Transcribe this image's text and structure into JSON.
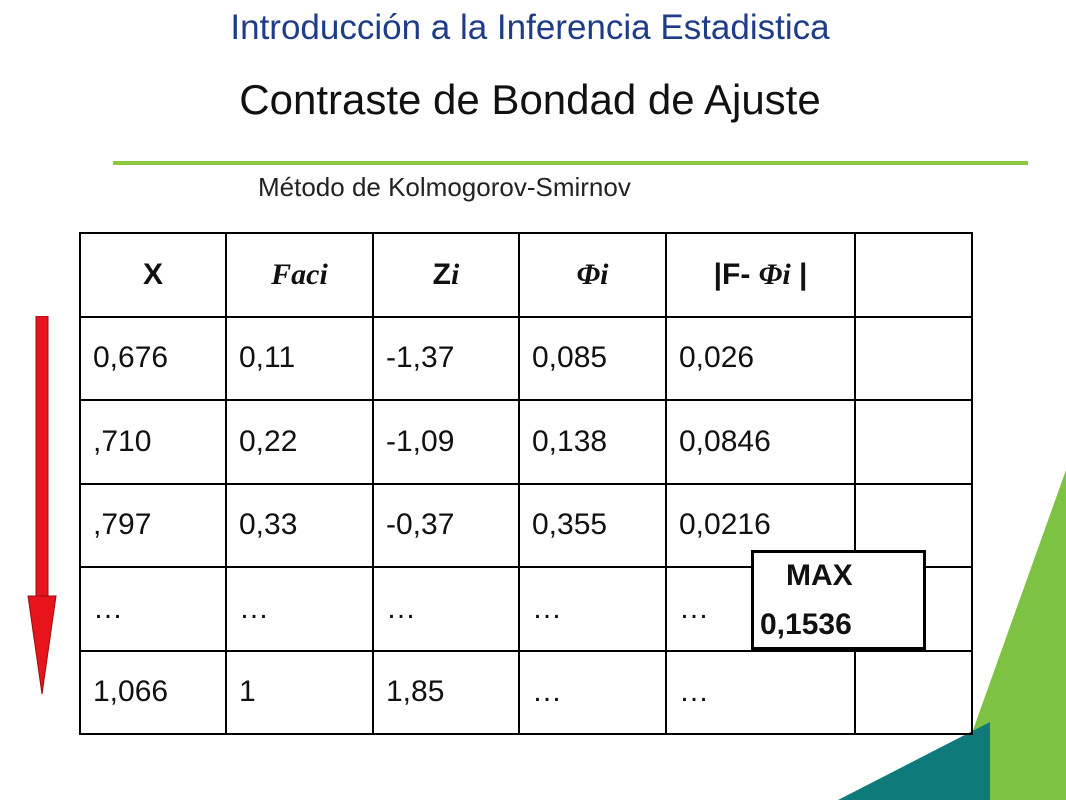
{
  "header": {
    "title": "Introducción a la Inferencia Estadistica",
    "slide_title": "Contraste de Bondad de Ajuste",
    "subtitle": "Método de Kolmogorov-Smirnov"
  },
  "table": {
    "headers": {
      "x": "X",
      "faci": "Faci",
      "z": "Z",
      "z_sub": "i",
      "phi": "Φi",
      "diff_prefix": "|F- ",
      "diff_phi": "Φi",
      "diff_suffix": " |",
      "extra": ""
    },
    "rows": [
      [
        "0,676",
        "0,11",
        "-1,37",
        "0,085",
        "0,026",
        ""
      ],
      [
        ",710",
        "0,22",
        "-1,09",
        "0,138",
        "0,0846",
        ""
      ],
      [
        ",797",
        "0,33",
        "-0,37",
        "0,355",
        "0,0216",
        ""
      ],
      [
        "…",
        "…",
        "…",
        "…",
        "…",
        ""
      ],
      [
        "1,066",
        "1",
        "1,85",
        "…",
        "…",
        ""
      ]
    ]
  },
  "max_box": {
    "label": "MAX",
    "value": "0,1536"
  },
  "colors": {
    "header_title": "#1F3C88",
    "rule": "#8DC63F",
    "arrow": "#E8141B",
    "deco_light": "#7DC242",
    "deco_dark": "#0F7A7A"
  }
}
